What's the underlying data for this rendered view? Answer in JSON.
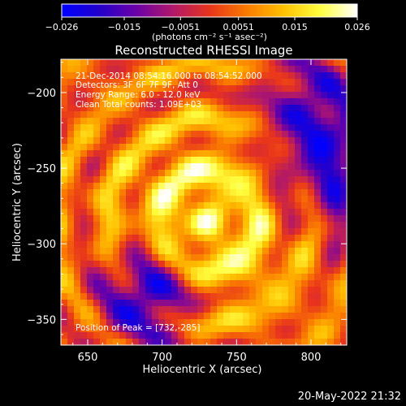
{
  "colorbar": {
    "ticks": [
      "-0.026",
      "-0.015",
      "-0.0051",
      "0.0051",
      "0.015",
      "0.026"
    ],
    "tick_values": [
      -0.026,
      -0.015,
      -0.0051,
      0.0051,
      0.015,
      0.026
    ],
    "range": [
      -0.026,
      0.026
    ],
    "unit_label": "(photons cm⁻² s⁻¹ asec⁻²)",
    "colors": [
      "#0000ff",
      "#2200cc",
      "#6a00a8",
      "#b0186a",
      "#e8341c",
      "#fa7a00",
      "#ffc000",
      "#ffff40",
      "#ffffff"
    ]
  },
  "chart_data": {
    "type": "heatmap",
    "title": "Reconstructed RHESSI Image",
    "xlabel": "Heliocentric X (arcsec)",
    "ylabel": "Heliocentric Y (arcsec)",
    "xlim": [
      632,
      824
    ],
    "ylim": [
      -367,
      -178
    ],
    "xticks": [
      650,
      700,
      750,
      800
    ],
    "yticks": [
      -200,
      -250,
      -300,
      -350
    ],
    "xtick_labels": [
      "650",
      "700",
      "750",
      "800"
    ],
    "ytick_labels": [
      "−200",
      "−250",
      "−300",
      "−350"
    ],
    "annotations": [
      "21-Dec-2014 08:54:16.000 to 08:54:52.000",
      "Detectors: 3F 6F 7F 9F, Att 0",
      "Energy Range: 6.0 - 12.0 keV",
      "Clean     Total counts: 1.09E+03"
    ],
    "peak_label": "Position of Peak = [732,-285]",
    "peak": [
      732,
      -285
    ],
    "value_range": [
      -0.026,
      0.026
    ]
  },
  "footer": {
    "timestamp": "20-May-2022 21:32"
  }
}
